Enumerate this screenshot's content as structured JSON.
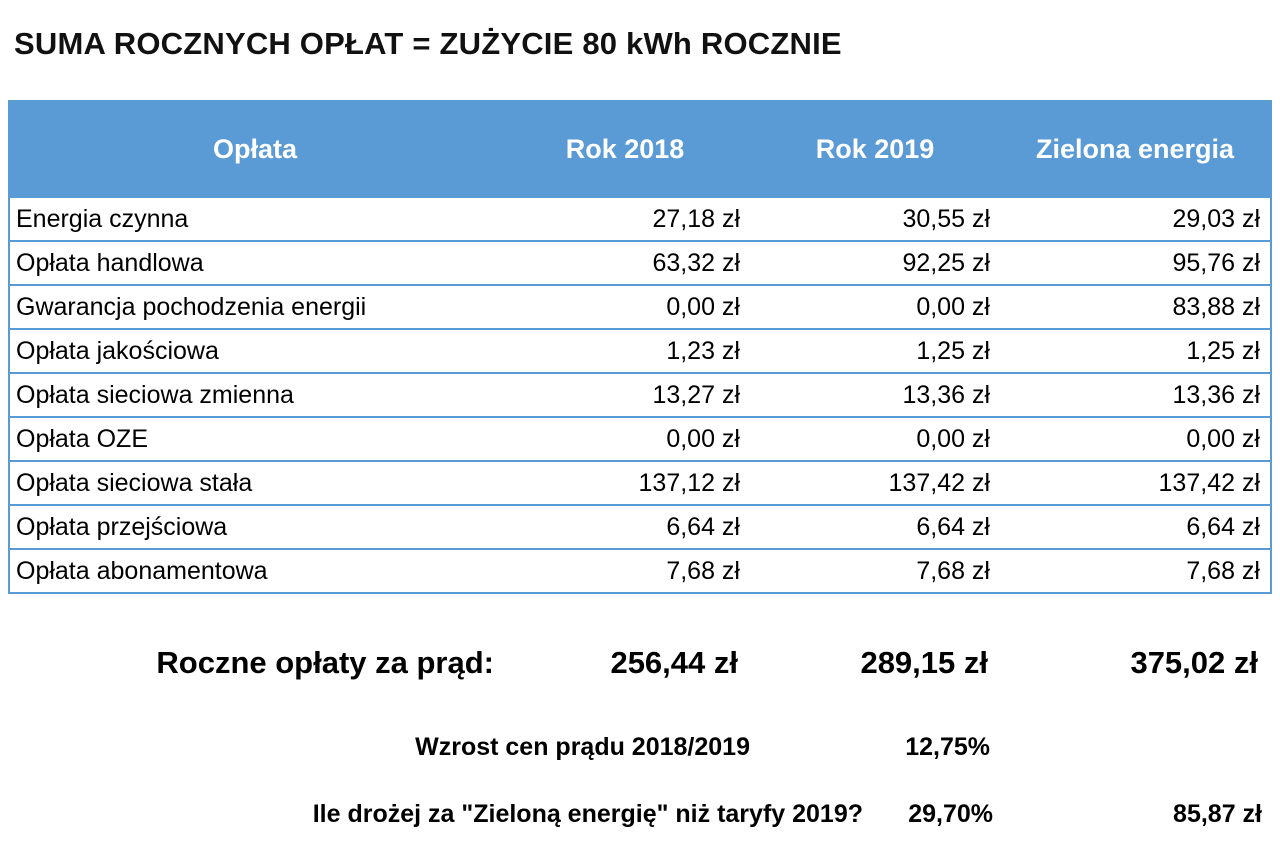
{
  "title": "SUMA ROCZNYCH OPŁAT = ZUŻYCIE 80 kWh ROCZNIE",
  "colors": {
    "header_bg": "#5b9bd5",
    "border": "#5b9bd5",
    "header_text": "#ffffff",
    "body_text": "#000000"
  },
  "table": {
    "headers": [
      "Opłata",
      "Rok 2018",
      "Rok 2019",
      "Zielona energia"
    ],
    "rows": [
      {
        "label": "Energia czynna",
        "values": [
          "27,18 zł",
          "30,55 zł",
          "29,03 zł"
        ]
      },
      {
        "label": "Opłata handlowa",
        "values": [
          "63,32 zł",
          "92,25 zł",
          "95,76 zł"
        ]
      },
      {
        "label": "Gwarancja pochodzenia energii",
        "values": [
          "0,00 zł",
          "0,00 zł",
          "83,88 zł"
        ]
      },
      {
        "label": "Opłata jakościowa",
        "values": [
          "1,23 zł",
          "1,25 zł",
          "1,25 zł"
        ]
      },
      {
        "label": "Opłata sieciowa zmienna",
        "values": [
          "13,27 zł",
          "13,36 zł",
          "13,36 zł"
        ]
      },
      {
        "label": "Opłata OZE",
        "values": [
          "0,00 zł",
          "0,00 zł",
          "0,00 zł"
        ]
      },
      {
        "label": "Opłata sieciowa stała",
        "values": [
          "137,12 zł",
          "137,42 zł",
          "137,42 zł"
        ]
      },
      {
        "label": "Opłata przejściowa",
        "values": [
          "6,64 zł",
          "6,64 zł",
          "6,64 zł"
        ]
      },
      {
        "label": "Opłata abonamentowa",
        "values": [
          "7,68 zł",
          "7,68 zł",
          "7,68 zł"
        ]
      }
    ]
  },
  "summary": {
    "total_label": "Roczne opłaty za prąd:",
    "totals": [
      "256,44 zł",
      "289,15 zł",
      "375,02 zł"
    ],
    "increase_label": "Wzrost cen prądu 2018/2019",
    "increase_value": "12,75%",
    "green_label": "Ile drożej za \"Zieloną energię\" niż taryfy 2019?",
    "green_percent": "29,70%",
    "green_value": "85,87 zł"
  },
  "chart_data": {
    "type": "table",
    "title": "SUMA ROCZNYCH OPŁAT = ZUŻYCIE 80 kWh ROCZNIE",
    "columns": [
      "Opłata",
      "Rok 2018",
      "Rok 2019",
      "Zielona energia"
    ],
    "unit": "zł",
    "rows": [
      [
        "Energia czynna",
        27.18,
        30.55,
        29.03
      ],
      [
        "Opłata handlowa",
        63.32,
        92.25,
        95.76
      ],
      [
        "Gwarancja pochodzenia energii",
        0.0,
        0.0,
        83.88
      ],
      [
        "Opłata jakościowa",
        1.23,
        1.25,
        1.25
      ],
      [
        "Opłata sieciowa zmienna",
        13.27,
        13.36,
        13.36
      ],
      [
        "Opłata OZE",
        0.0,
        0.0,
        0.0
      ],
      [
        "Opłata sieciowa stała",
        137.12,
        137.42,
        137.42
      ],
      [
        "Opłata przejściowa",
        6.64,
        6.64,
        6.64
      ],
      [
        "Opłata abonamentowa",
        7.68,
        7.68,
        7.68
      ]
    ],
    "totals": {
      "label": "Roczne opłaty za prąd:",
      "Rok 2018": 256.44,
      "Rok 2019": 289.15,
      "Zielona energia": 375.02
    },
    "annotations": [
      {
        "label": "Wzrost cen prądu 2018/2019",
        "value_percent": 12.75
      },
      {
        "label": "Ile drożej za \"Zieloną energię\" niż taryfy 2019?",
        "value_percent": 29.7,
        "value_zl": 85.87
      }
    ]
  }
}
